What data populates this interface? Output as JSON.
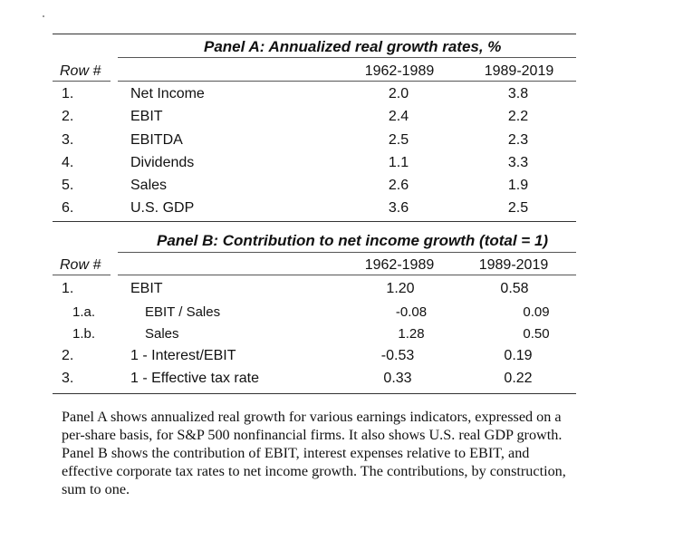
{
  "panel_a": {
    "title": "Panel A: Annualized real growth rates, %",
    "row_header": "Row #",
    "columns": [
      "1962-1989",
      "1989-2019"
    ],
    "rows": [
      {
        "num": "1.",
        "label": "Net Income",
        "v1": "2.0",
        "v2": "3.8"
      },
      {
        "num": "2.",
        "label": "EBIT",
        "v1": "2.4",
        "v2": "2.2"
      },
      {
        "num": "3.",
        "label": "EBITDA",
        "v1": "2.5",
        "v2": "2.3"
      },
      {
        "num": "4.",
        "label": "Dividends",
        "v1": "1.1",
        "v2": "3.3"
      },
      {
        "num": "5.",
        "label": "Sales",
        "v1": "2.6",
        "v2": "1.9"
      },
      {
        "num": "6.",
        "label": "U.S. GDP",
        "v1": "3.6",
        "v2": "2.5"
      }
    ]
  },
  "panel_b": {
    "title": "Panel B: Contribution to net income growth (total = 1)",
    "row_header": "Row #",
    "columns": [
      "1962-1989",
      "1989-2019"
    ],
    "rows": [
      {
        "num": "1.",
        "label": "EBIT",
        "v1": "1.20",
        "v2": "0.58"
      },
      {
        "num": "1.a.",
        "label": "EBIT / Sales",
        "v1": "-0.08",
        "v2": "0.09"
      },
      {
        "num": "1.b.",
        "label": "Sales",
        "v1": "1.28",
        "v2": "0.50"
      },
      {
        "num": "2.",
        "label": "1 - Interest/EBIT",
        "v1": "-0.53",
        "v2": "0.19"
      },
      {
        "num": "3.",
        "label": "1 - Effective tax rate",
        "v1": "0.33",
        "v2": "0.22"
      }
    ]
  },
  "caption": "Panel A shows annualized real growth for various earnings indicators, expressed on a per-share basis, for S&P 500 nonfinancial firms. It also shows U.S. real GDP growth. Panel B shows the contribution of EBIT, interest expenses relative to EBIT, and effective corporate tax rates to net income growth. The contributions, by construction, sum to one."
}
